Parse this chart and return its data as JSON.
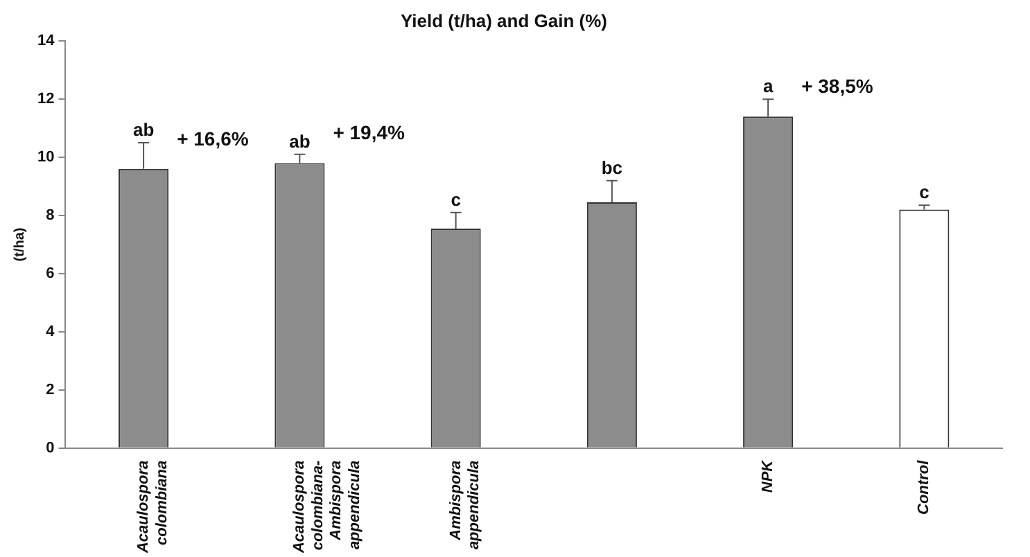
{
  "chart_data": {
    "type": "bar",
    "title": "Yield (t/ha) and Gain (%)",
    "ylabel": "(t/ha)",
    "categories": [
      "Acaulospora colombiana",
      "Acaulospora colombiana-Ambispora appendicula",
      "Ambispora appendicula",
      null,
      "NPK",
      "Control"
    ],
    "values": [
      9.6,
      9.8,
      7.55,
      8.45,
      11.4,
      8.2
    ],
    "colors": [
      "#8c8c8c",
      "#8c8c8c",
      "#8c8c8c",
      "#8c8c8c",
      "#8c8c8c",
      "#ffffff"
    ],
    "errors": [
      [
        9.6,
        10.5
      ],
      [
        9.8,
        10.1
      ],
      [
        7.55,
        8.1
      ],
      [
        8.45,
        9.2
      ],
      [
        11.4,
        12.0
      ],
      [
        8.2,
        8.35
      ]
    ],
    "value_labels": [
      "ab",
      "ab",
      "c",
      "bc",
      "a",
      "c"
    ],
    "annotations": [
      {
        "text": "+ 16,6%",
        "x": "Acaulospora colombiana",
        "y": 9.6
      },
      {
        "text": "+ 19,4%",
        "x": "Acaulospora colombiana-Ambispora appendicula",
        "y": 9.8
      },
      {
        "text": "+ 38,5%",
        "x": "NPK",
        "y": 11.4
      }
    ],
    "ylim": [
      0,
      14
    ],
    "yticks": [
      0,
      2,
      4,
      6,
      8,
      10,
      12,
      14
    ],
    "grid": false,
    "legend": false
  }
}
